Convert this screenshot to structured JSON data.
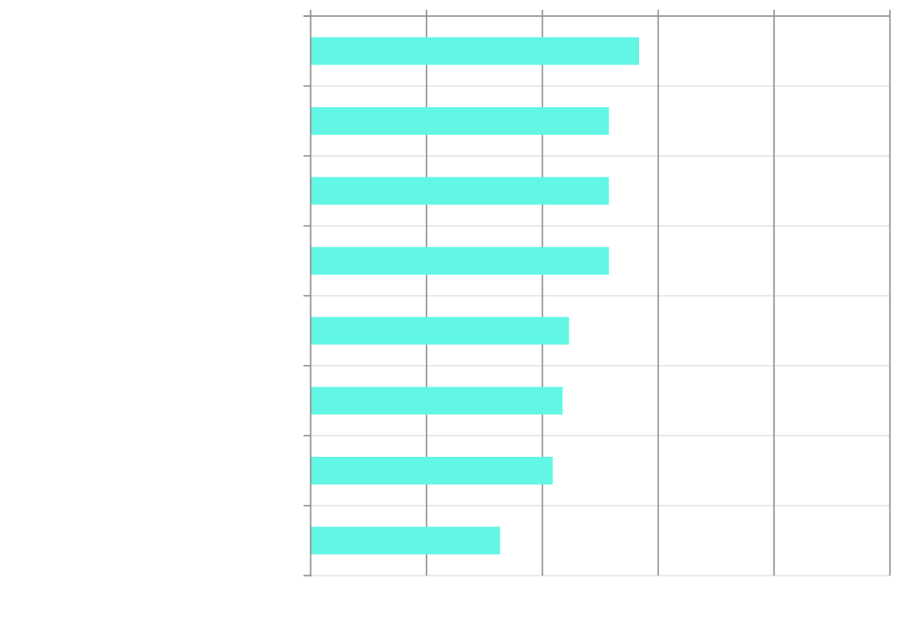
{
  "chart_data": {
    "type": "bar",
    "orientation": "horizontal",
    "categories": [
      "",
      "",
      "",
      "",
      "",
      "",
      "",
      ""
    ],
    "values": [
      0.567,
      0.515,
      0.515,
      0.515,
      0.446,
      0.435,
      0.418,
      0.327
    ],
    "xlim": [
      0,
      1
    ],
    "bar_color": "#62F6E5",
    "grid": true,
    "legend": "none"
  },
  "colors": {
    "axis": "#8C8C8C",
    "grid_vertical": "#8C8C8C",
    "grid_horizontal": "#E3E3E3",
    "background": "#FFFFFF"
  }
}
